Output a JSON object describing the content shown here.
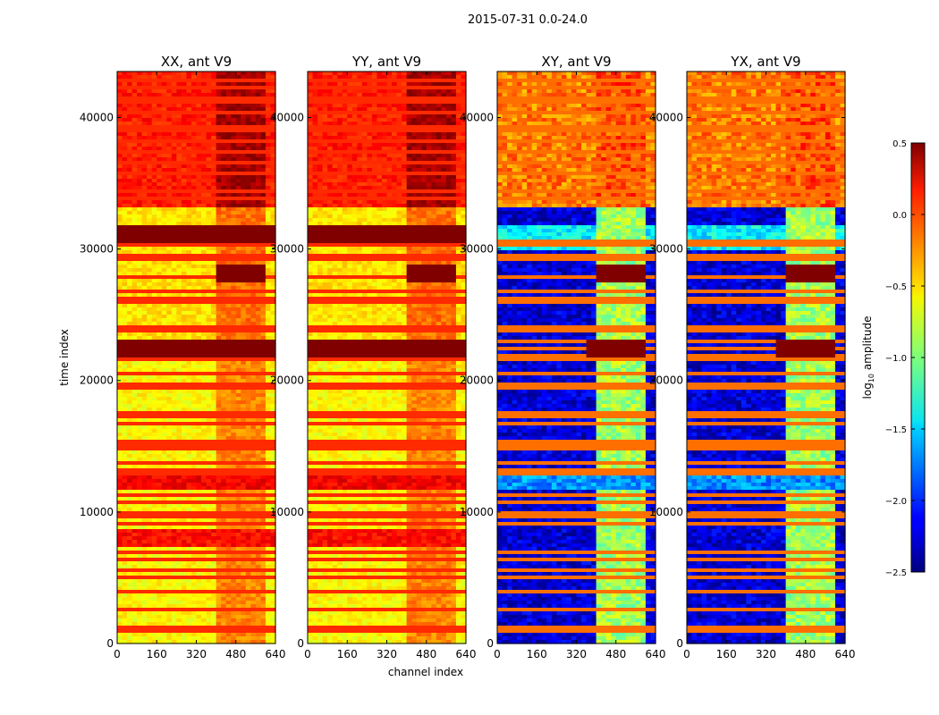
{
  "figure": {
    "suptitle": "2015-07-31 0.0-24.0"
  },
  "chart_data": {
    "type": "heatmap",
    "title": "2015-07-31 0.0-24.0",
    "xlabel": "channel index",
    "ylabel": "time index",
    "xlim": [
      0,
      640
    ],
    "ylim": [
      0,
      43500
    ],
    "xticks": [
      0,
      160,
      320,
      480,
      640
    ],
    "yticks": [
      0,
      10000,
      20000,
      30000,
      40000
    ],
    "colormap": "jet",
    "colorbar": {
      "label": "log10 amplitude",
      "label_prefix": "log",
      "label_sub": "10",
      "label_suffix": " amplitude",
      "range": [
        -2.5,
        0.5
      ],
      "ticks": [
        0.5,
        0.0,
        -0.5,
        -1.0,
        -1.5,
        -2.0,
        -2.5
      ],
      "tick_labels": [
        "0.5",
        "0.0",
        "−0.5",
        "−1.0",
        "−1.5",
        "−2.0",
        "−2.5"
      ]
    },
    "panels": [
      {
        "title": "XX, ant V9",
        "kind": "parallel"
      },
      {
        "title": "YY, ant V9",
        "kind": "parallel"
      },
      {
        "title": "XY, ant V9",
        "kind": "cross"
      },
      {
        "title": "YX, ant V9",
        "kind": "cross"
      }
    ]
  }
}
